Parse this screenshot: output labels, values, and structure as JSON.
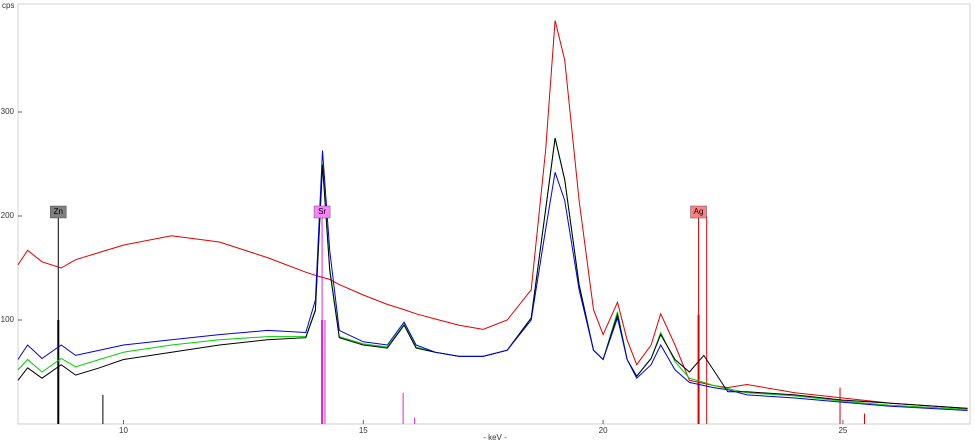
{
  "chart_data": {
    "type": "line",
    "y_label": "cps",
    "x_label": "- keV -",
    "xlim": [
      7.8,
      27.65
    ],
    "ylim": [
      0,
      400
    ],
    "xticks": [
      10,
      15,
      20,
      25
    ],
    "yticks": [
      100,
      200,
      300
    ],
    "x": [
      7.8,
      8.0,
      8.3,
      8.7,
      9.0,
      9.5,
      10,
      11,
      12,
      13,
      13.8,
      14.0,
      14.15,
      14.3,
      14.5,
      15,
      15.5,
      15.85,
      16.1,
      16.5,
      17,
      17.5,
      18,
      18.5,
      18.8,
      19.0,
      19.2,
      19.5,
      19.8,
      20.0,
      20.3,
      20.5,
      20.7,
      21.0,
      21.2,
      21.5,
      21.8,
      22.1,
      22.3,
      22.6,
      23,
      24,
      25,
      26,
      27.6
    ],
    "series": [
      {
        "color": "#e00000",
        "values": [
          153,
          167,
          156,
          150,
          158,
          165,
          172,
          181,
          175,
          160,
          146,
          143,
          141,
          139,
          134,
          124,
          115,
          110,
          106,
          101,
          95,
          91,
          100,
          129,
          263,
          388,
          350,
          215,
          110,
          86,
          117,
          81,
          57,
          76,
          106,
          76,
          42,
          39,
          37,
          35,
          38,
          30,
          25,
          20,
          15
        ]
      },
      {
        "color": "#00d000",
        "values": [
          52,
          62,
          50,
          63,
          55,
          62,
          69,
          76,
          81,
          84,
          84,
          110,
          250,
          150,
          84,
          77,
          74,
          96,
          74,
          69,
          65,
          65,
          71,
          102,
          206,
          275,
          235,
          134,
          71,
          62,
          108,
          62,
          46,
          63,
          88,
          60,
          44,
          40,
          37,
          34,
          30,
          27,
          22,
          18,
          14
        ]
      },
      {
        "color": "#000000",
        "values": [
          42,
          54,
          44,
          57,
          47,
          54,
          62,
          69,
          76,
          81,
          83,
          109,
          249,
          148,
          83,
          76,
          73,
          95,
          73,
          69,
          65,
          65,
          71,
          102,
          206,
          275,
          235,
          134,
          71,
          62,
          105,
          62,
          46,
          63,
          86,
          62,
          50,
          66,
          52,
          31,
          31,
          28,
          23,
          20,
          15
        ]
      },
      {
        "color": "#0000e0",
        "values": [
          62,
          76,
          63,
          76,
          66,
          71,
          76,
          81,
          86,
          90,
          88,
          119,
          263,
          167,
          90,
          79,
          76,
          98,
          76,
          69,
          65,
          65,
          71,
          100,
          187,
          242,
          215,
          129,
          71,
          62,
          102,
          62,
          44,
          57,
          76,
          52,
          40,
          37,
          35,
          33,
          28,
          25,
          21,
          17,
          13
        ]
      }
    ],
    "markers": [
      {
        "name": "Zn",
        "color": "#000000",
        "label_color": "#808080",
        "x": [
          8.64,
          9.57
        ],
        "y": [
          100,
          28
        ]
      },
      {
        "name": "Sr",
        "color": "#e020e0",
        "label_color": "#ff80ff",
        "x": [
          14.14,
          14.2,
          15.83,
          16.07
        ],
        "y": [
          100,
          100,
          30,
          6
        ]
      },
      {
        "name": "Ag",
        "color": "#e00000",
        "label_color": "#ff8080",
        "x": [
          21.99,
          22.16,
          24.94,
          25.45
        ],
        "y": [
          105,
          200,
          35,
          10
        ]
      }
    ]
  }
}
